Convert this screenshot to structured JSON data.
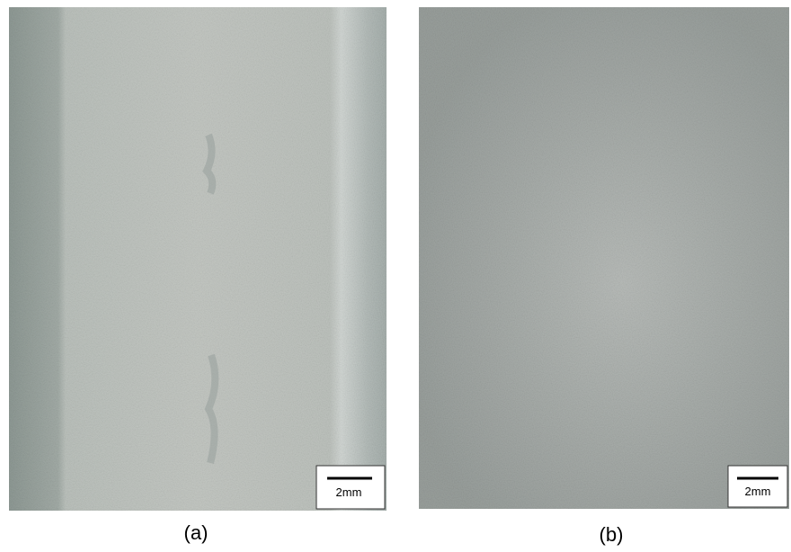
{
  "panels": [
    {
      "label": "(a)",
      "scale_bar": "2mm"
    },
    {
      "label": "(b)",
      "scale_bar": "2mm"
    }
  ]
}
